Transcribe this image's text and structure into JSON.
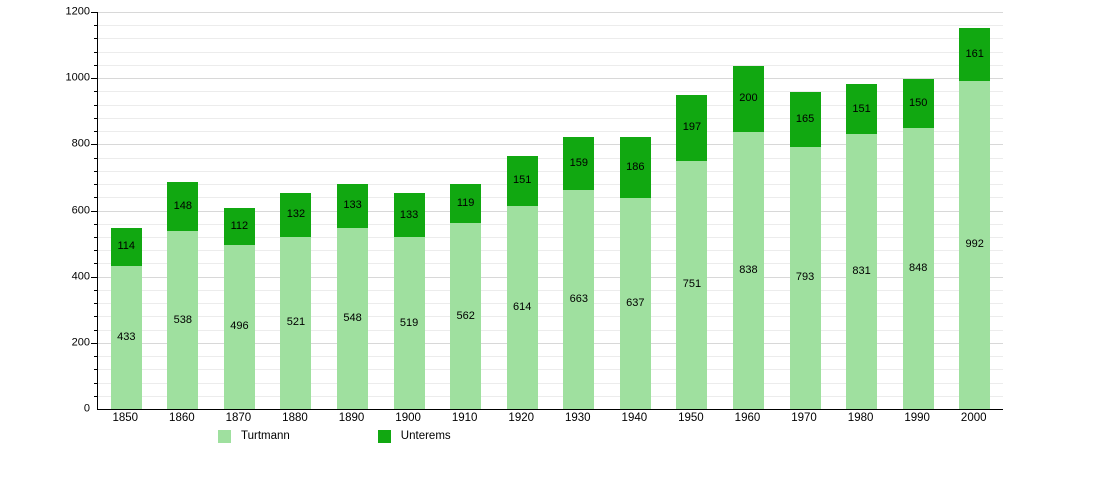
{
  "chart_data": {
    "type": "bar",
    "stacked": true,
    "title": "",
    "xlabel": "",
    "ylabel": "",
    "categories": [
      "1850",
      "1860",
      "1870",
      "1880",
      "1890",
      "1900",
      "1910",
      "1920",
      "1930",
      "1940",
      "1950",
      "1960",
      "1970",
      "1980",
      "1990",
      "2000"
    ],
    "series": [
      {
        "name": "Turtmann",
        "color": "#9fe09f",
        "values": [
          433,
          538,
          496,
          521,
          548,
          519,
          562,
          614,
          663,
          637,
          751,
          838,
          793,
          831,
          848,
          992
        ]
      },
      {
        "name": "Unterems",
        "color": "#11a811",
        "values": [
          114,
          148,
          112,
          132,
          133,
          133,
          119,
          151,
          159,
          186,
          197,
          200,
          165,
          151,
          150,
          161
        ]
      }
    ],
    "ylim": [
      0,
      1200
    ],
    "y_major_step": 200,
    "y_minor_step": 40,
    "y_tick_labels": [
      "0",
      "200",
      "400",
      "600",
      "800",
      "1000",
      "1200"
    ],
    "grid": true,
    "show_value_labels": true,
    "legend_position": "bottom",
    "colors": {
      "axis": "#000000",
      "grid_major": "#d8d8d8",
      "grid_minor": "#ececec",
      "value_label": "#000000",
      "background": "#ffffff"
    }
  }
}
